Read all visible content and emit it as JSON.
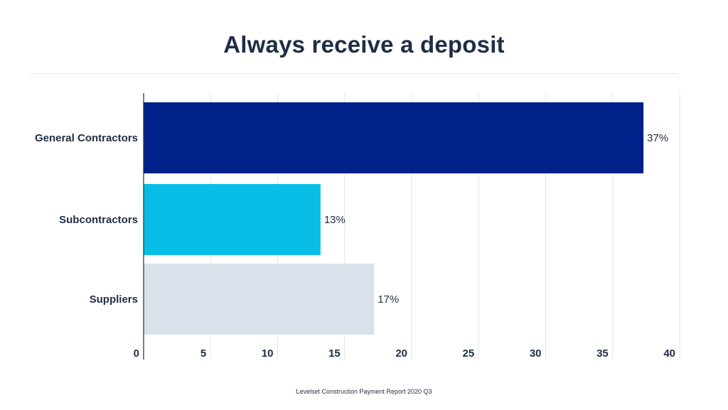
{
  "chart_data": {
    "type": "bar",
    "orientation": "horizontal",
    "title": "Always receive a deposit",
    "categories": [
      "General Contractors",
      "Subcontractors",
      "Suppliers"
    ],
    "values": [
      37.3,
      13.2,
      17.2
    ],
    "value_labels": [
      "37%",
      "13%",
      "17%"
    ],
    "colors": [
      "#00208a",
      "#08bde6",
      "#d9e2ea"
    ],
    "xlim": [
      0,
      40
    ],
    "x_ticks": [
      "0",
      "5",
      "10",
      "15",
      "20",
      "25",
      "30",
      "35",
      "40"
    ],
    "grid": "vertical",
    "legend": "none"
  },
  "source": "Levelset Construction Payment Report 2020 Q3"
}
